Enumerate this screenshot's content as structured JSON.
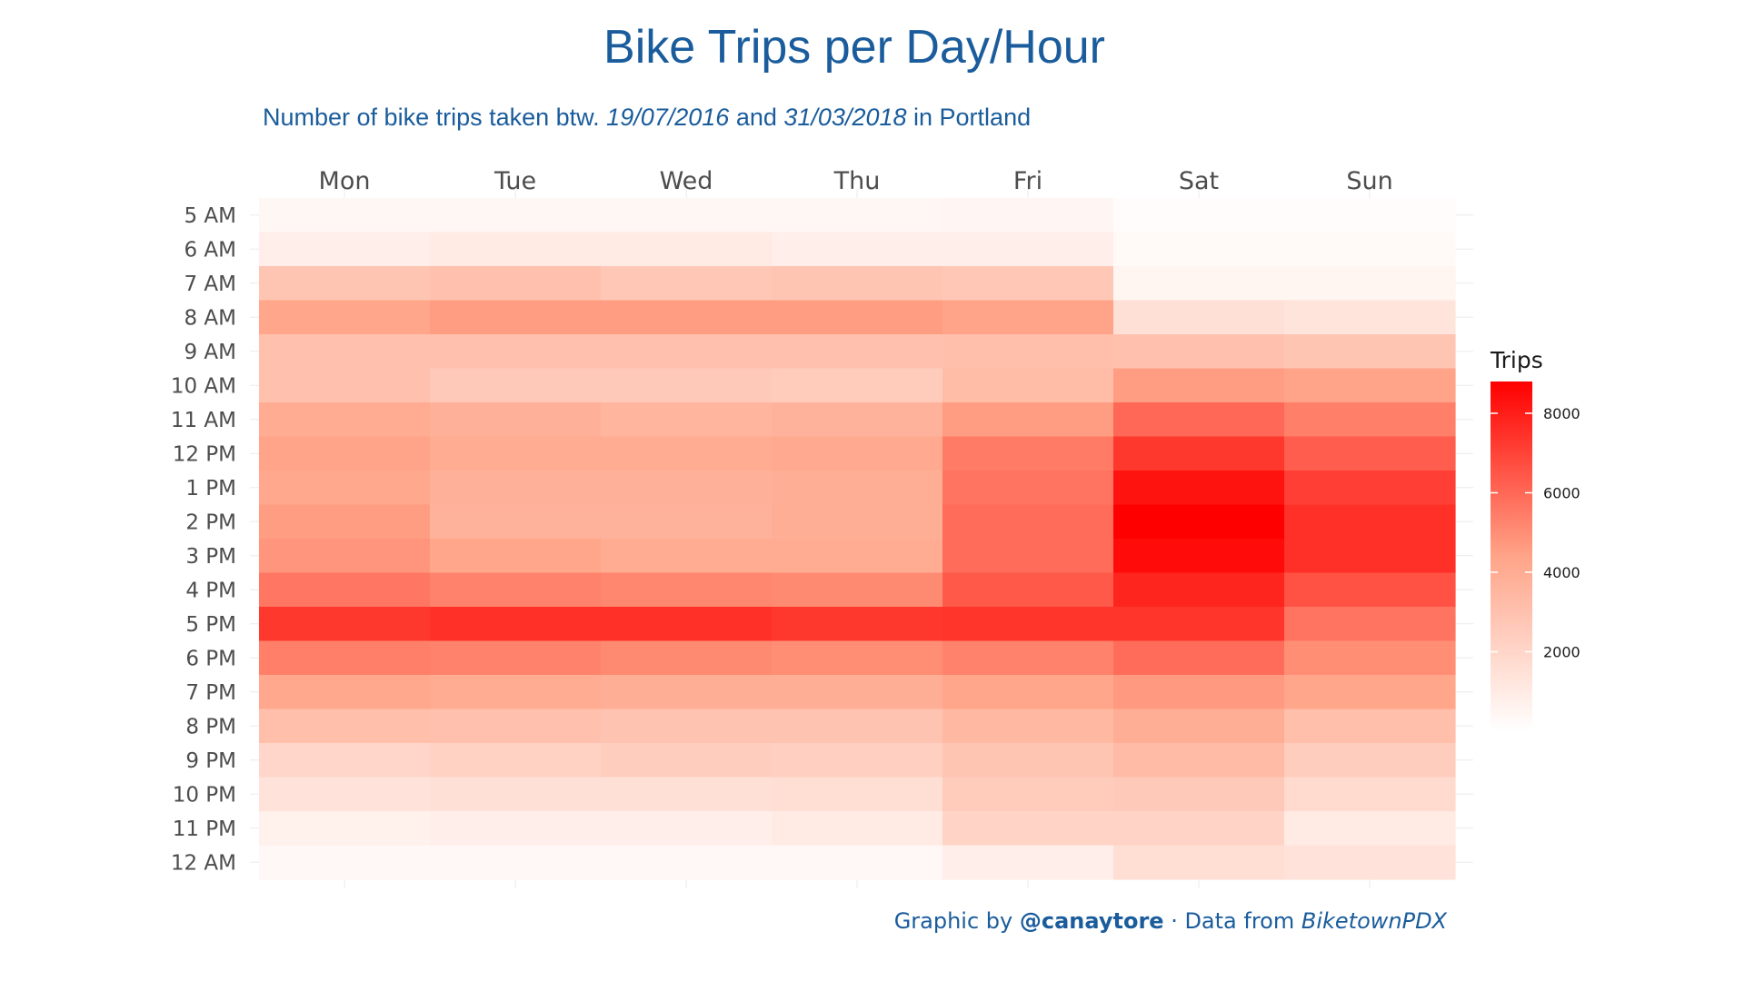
{
  "chart_data": {
    "type": "heatmap",
    "title": "Bike Trips per Day/Hour",
    "subtitle": {
      "prefix": "Number of bike trips taken btw. ",
      "start": "19/07/2016",
      "middle": " and ",
      "end": "31/03/2018",
      "suffix": " in Portland"
    },
    "x_categories": [
      "Mon",
      "Tue",
      "Wed",
      "Thu",
      "Fri",
      "Sat",
      "Sun"
    ],
    "y_categories": [
      "5 AM",
      "6 AM",
      "7 AM",
      "8 AM",
      "9 AM",
      "10 AM",
      "11 AM",
      "12 PM",
      "1 PM",
      "2 PM",
      "3 PM",
      "4 PM",
      "5 PM",
      "6 PM",
      "7 PM",
      "8 PM",
      "9 PM",
      "10 PM",
      "11 PM",
      "12 AM"
    ],
    "values": [
      [
        400,
        400,
        400,
        400,
        450,
        150,
        150
      ],
      [
        800,
        1000,
        1000,
        800,
        800,
        300,
        250
      ],
      [
        2800,
        3000,
        2700,
        2800,
        2700,
        500,
        500
      ],
      [
        4300,
        4600,
        4600,
        4600,
        4400,
        1500,
        1300
      ],
      [
        3000,
        3000,
        3000,
        3000,
        3100,
        3000,
        2800
      ],
      [
        3000,
        2600,
        2600,
        2500,
        3200,
        4600,
        4400
      ],
      [
        4000,
        3800,
        3600,
        3700,
        4600,
        6000,
        5400
      ],
      [
        4400,
        4000,
        4000,
        4100,
        5500,
        7300,
        6300
      ],
      [
        4200,
        3800,
        3800,
        3900,
        5700,
        8300,
        7100
      ],
      [
        4600,
        3700,
        3700,
        3900,
        5900,
        8800,
        7500
      ],
      [
        4800,
        4300,
        4000,
        4000,
        5900,
        8500,
        7500
      ],
      [
        5600,
        5300,
        5200,
        5100,
        6400,
        7800,
        6600
      ],
      [
        7300,
        7500,
        7500,
        7300,
        7400,
        7400,
        5700
      ],
      [
        5400,
        5300,
        5100,
        5000,
        5300,
        5900,
        5000
      ],
      [
        4200,
        4000,
        3900,
        3900,
        4300,
        4700,
        4300
      ],
      [
        3100,
        3000,
        2900,
        2900,
        3400,
        3900,
        3100
      ],
      [
        2000,
        2200,
        2400,
        2300,
        2800,
        3300,
        2400
      ],
      [
        1400,
        1500,
        1500,
        1600,
        2500,
        2600,
        1800
      ],
      [
        700,
        800,
        800,
        1000,
        2100,
        2100,
        1000
      ],
      [
        350,
        350,
        350,
        350,
        800,
        1600,
        1400
      ]
    ],
    "color_scale": {
      "low": "#ffffff",
      "mid": "#ffa488",
      "high": "#ff0000",
      "min": 0,
      "max": 8800
    },
    "legend": {
      "title": "Trips",
      "ticks": [
        8000,
        6000,
        4000,
        2000
      ],
      "tick_labels": [
        "8000",
        "6000",
        "4000",
        "2000"
      ],
      "placement": "right"
    },
    "grid": true,
    "caption": {
      "prefix": "Graphic by ",
      "author": "@canaytore",
      "separator": " ·  ",
      "data_prefix": "Data from ",
      "source": "BiketownPDX"
    }
  }
}
